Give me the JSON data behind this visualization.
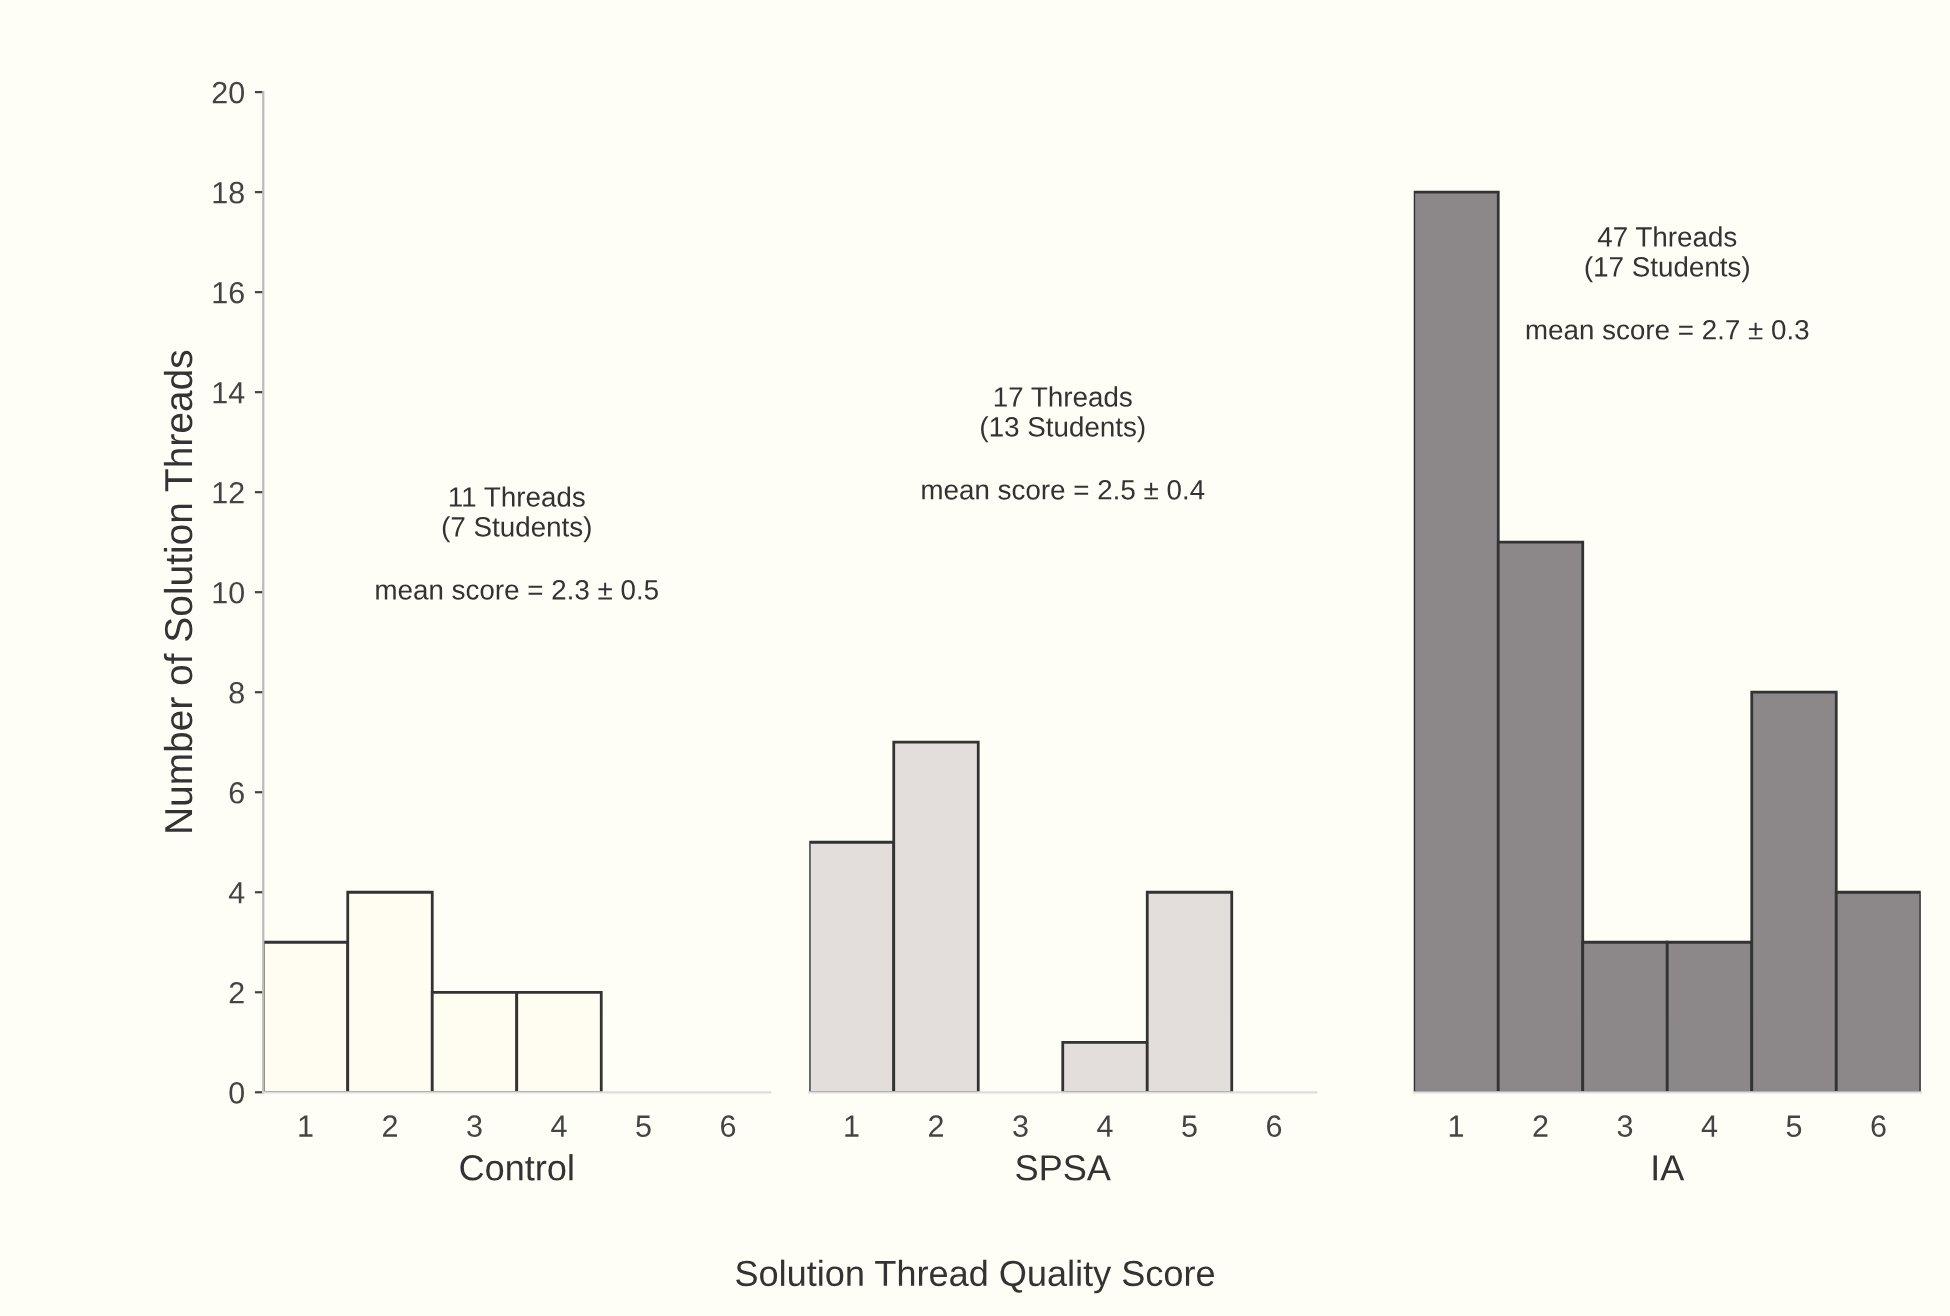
{
  "chart_data": [
    {
      "type": "bar",
      "xlabel": "Control",
      "ylabel": "Number of Solution Threads",
      "categories": [
        "1",
        "2",
        "3",
        "4",
        "5",
        "6"
      ],
      "values": [
        3,
        4,
        2,
        2,
        0,
        0
      ],
      "color": "#fffdf2",
      "ylim": [
        0,
        20
      ],
      "yticks": [
        0,
        2,
        4,
        6,
        8,
        10,
        12,
        14,
        16,
        18,
        20
      ],
      "grid": false,
      "annotations": [
        "11 Threads\n(7 Students)",
        "mean score = 2.3 ± 0.5"
      ]
    },
    {
      "type": "bar",
      "xlabel": "SPSA",
      "categories": [
        "1",
        "2",
        "3",
        "4",
        "5",
        "6"
      ],
      "values": [
        5,
        7,
        0,
        1,
        4,
        0
      ],
      "color": "#e3dedb",
      "ylim": [
        0,
        20
      ],
      "yticks": [
        0,
        2,
        4,
        6,
        8,
        10,
        12,
        14,
        16,
        18,
        20
      ],
      "tick_labels": "x",
      "grid": false,
      "annotations": [
        "17 Threads\n(13 Students)",
        "mean score = 2.5 ± 0.4",
        "Solution Thread Quality Score"
      ]
    },
    {
      "type": "bar",
      "xlabel": "IA",
      "categories": [
        "1",
        "2",
        "3",
        "4",
        "5",
        "6"
      ],
      "values": [
        18,
        11,
        3,
        3,
        8,
        4
      ],
      "color": "#8c888a",
      "ylim": [
        0,
        20
      ],
      "yticks": [
        0,
        2,
        4,
        6,
        8,
        10,
        12,
        14,
        16,
        18,
        20
      ],
      "tick_labels": "x",
      "grid": false,
      "annotations": [
        "47 Threads\n(17 Students)",
        "mean score = 2.7 ± 0.3"
      ]
    }
  ]
}
